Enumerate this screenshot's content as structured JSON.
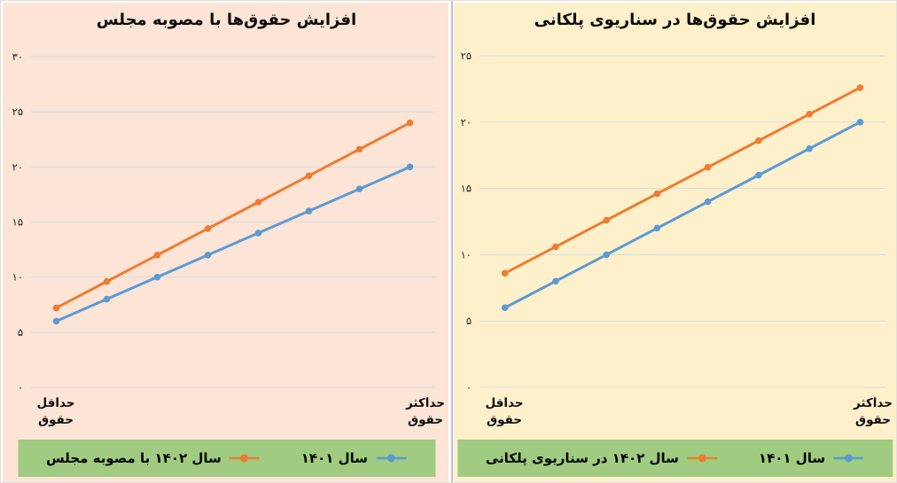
{
  "chart_data": [
    {
      "type": "line",
      "title": "افزایش حقوق‌ها با مصوبه مجلس",
      "categories": [
        "حداقل حقوق",
        "",
        "",
        "",
        "",
        "",
        "",
        "حداکثر حقوق"
      ],
      "series": [
        {
          "name": "سال ۱۴۰۱",
          "color": "#5b9bd5",
          "values": [
            6,
            8,
            10,
            12,
            14,
            16,
            18,
            20
          ]
        },
        {
          "name": "سال ۱۴۰۲ با مصوبه مجلس",
          "color": "#ed7d31",
          "values": [
            7.2,
            9.6,
            12,
            14.4,
            16.8,
            19.2,
            21.6,
            24
          ]
        }
      ],
      "ylim": [
        0,
        30
      ],
      "ytick_step": 5,
      "ytick_labels": [
        "۰",
        "۵",
        "۱۰",
        "۱۵",
        "۲۰",
        "۲۵",
        "۳۰"
      ],
      "xlabels": {
        "min": [
          "حداقل",
          "حقوق"
        ],
        "max": [
          "حداکثر",
          "حقوق"
        ]
      },
      "grid": true,
      "legend_position": "bottom",
      "colors": {
        "panel_bg": "#fce4d6",
        "legend_bg": "#9fcc80",
        "grid": "#d5dbe2",
        "title": "#0d0d0d"
      }
    },
    {
      "type": "line",
      "title": "افزایش حقوق‌ها در سناریوی پلکانی",
      "categories": [
        "حداقل حقوق",
        "",
        "",
        "",
        "",
        "",
        "",
        "حداکثر حقوق"
      ],
      "series": [
        {
          "name": "سال ۱۴۰۱",
          "color": "#5b9bd5",
          "values": [
            6,
            8,
            10,
            12,
            14,
            16,
            18,
            20
          ]
        },
        {
          "name": "سال ۱۴۰۲ در سناریوی پلکانی",
          "color": "#ed7d31",
          "values": [
            8.6,
            10.6,
            12.6,
            14.6,
            16.6,
            18.6,
            20.6,
            22.6
          ]
        }
      ],
      "ylim": [
        0,
        25
      ],
      "ytick_step": 5,
      "ytick_labels": [
        "۰",
        "۵",
        "۱۰",
        "۱۵",
        "۲۰",
        "۲۵"
      ],
      "xlabels": {
        "min": [
          "حداقل",
          "حقوق"
        ],
        "max": [
          "حداکثر",
          "حقوق"
        ]
      },
      "grid": true,
      "legend_position": "bottom",
      "colors": {
        "panel_bg": "#fef0cb",
        "legend_bg": "#9fcc80",
        "grid": "#d5dbe2",
        "title": "#0d0d0d"
      }
    }
  ]
}
